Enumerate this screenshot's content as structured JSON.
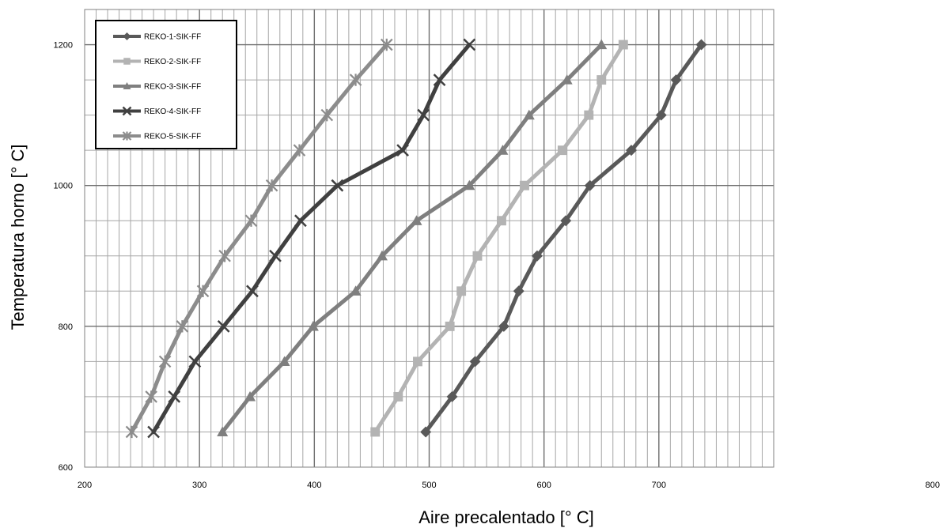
{
  "chart_data": {
    "type": "line",
    "title": "",
    "xlabel": "Aire precalentado [° C]",
    "ylabel": "Temperatura horno [° C]",
    "xlim": [
      200,
      800
    ],
    "ylim": [
      600,
      1250
    ],
    "x_ticks": [
      200,
      300,
      400,
      500,
      600,
      700,
      800
    ],
    "y_ticks": [
      600,
      800,
      1000,
      1200
    ],
    "x_tick_labels": [
      "200",
      "300",
      "400",
      "500",
      "600",
      "700",
      "800"
    ],
    "y_tick_labels": [
      "600",
      "800",
      "1000",
      "1200"
    ],
    "grid": true,
    "legend_position": "top-left",
    "series": [
      {
        "name": "REKO-1-SIK-FF",
        "marker": "diamond",
        "color": "#595959",
        "points": [
          [
            497,
            650
          ],
          [
            520,
            700
          ],
          [
            540,
            750
          ],
          [
            565,
            800
          ],
          [
            578,
            850
          ],
          [
            594,
            900
          ],
          [
            619,
            950
          ],
          [
            640,
            1000
          ],
          [
            676,
            1050
          ],
          [
            702,
            1100
          ],
          [
            715,
            1150
          ],
          [
            737,
            1200
          ]
        ]
      },
      {
        "name": "REKO-2-SIK-FF",
        "marker": "square",
        "color": "#b3b3b3",
        "points": [
          [
            453,
            650
          ],
          [
            473,
            700
          ],
          [
            490,
            750
          ],
          [
            518,
            800
          ],
          [
            528,
            850
          ],
          [
            542,
            900
          ],
          [
            563,
            950
          ],
          [
            583,
            1000
          ],
          [
            616,
            1050
          ],
          [
            639,
            1100
          ],
          [
            650,
            1150
          ],
          [
            669,
            1200
          ]
        ]
      },
      {
        "name": "REKO-3-SIK-FF",
        "marker": "triangle",
        "color": "#7f7f7f",
        "points": [
          [
            320,
            650
          ],
          [
            344,
            700
          ],
          [
            374,
            750
          ],
          [
            399,
            800
          ],
          [
            436,
            850
          ],
          [
            459,
            900
          ],
          [
            489,
            950
          ],
          [
            535,
            1000
          ],
          [
            564,
            1050
          ],
          [
            587,
            1100
          ],
          [
            620,
            1150
          ],
          [
            650,
            1200
          ]
        ]
      },
      {
        "name": "REKO-4-SIK-FF",
        "marker": "x",
        "color": "#404040",
        "points": [
          [
            260,
            650
          ],
          [
            278,
            700
          ],
          [
            296,
            750
          ],
          [
            321,
            800
          ],
          [
            346,
            850
          ],
          [
            366,
            900
          ],
          [
            388,
            950
          ],
          [
            420,
            1000
          ],
          [
            477,
            1050
          ],
          [
            495,
            1100
          ],
          [
            509,
            1150
          ],
          [
            535,
            1200
          ]
        ]
      },
      {
        "name": "REKO-5-SIK-FF",
        "marker": "star",
        "color": "#8c8c8c",
        "points": [
          [
            241,
            650
          ],
          [
            258,
            700
          ],
          [
            270,
            750
          ],
          [
            285,
            800
          ],
          [
            303,
            850
          ],
          [
            322,
            900
          ],
          [
            345,
            950
          ],
          [
            363,
            1000
          ],
          [
            387,
            1050
          ],
          [
            411,
            1100
          ],
          [
            436,
            1150
          ],
          [
            463,
            1200
          ]
        ]
      }
    ]
  }
}
